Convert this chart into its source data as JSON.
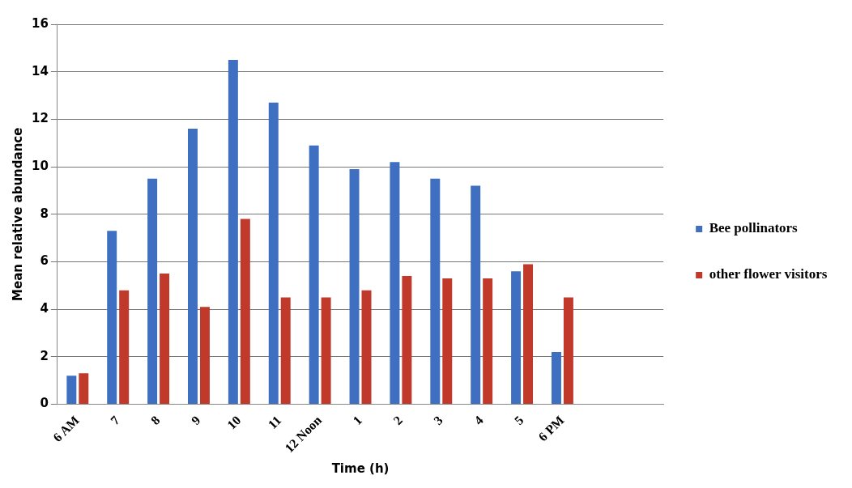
{
  "chart_data": {
    "type": "bar",
    "xlabel": "Time (h)",
    "ylabel": "Mean relative abundance",
    "categories": [
      "6 AM",
      "7",
      "8",
      "9",
      "10",
      "11",
      "12 Noon",
      "1",
      "2",
      "3",
      "4",
      "5",
      "6 PM",
      null,
      null
    ],
    "series": [
      {
        "name": "Bee pollinators",
        "color": "#3f6fc0",
        "values": [
          1.2,
          7.3,
          9.5,
          11.6,
          14.5,
          12.7,
          10.9,
          9.9,
          10.2,
          9.5,
          9.2,
          5.6,
          2.2,
          null,
          null
        ]
      },
      {
        "name": "other flower visitors",
        "color": "#c0392b",
        "values": [
          1.3,
          4.8,
          5.5,
          4.1,
          7.8,
          4.5,
          4.5,
          4.8,
          5.4,
          5.3,
          5.3,
          5.9,
          4.5,
          null,
          null
        ]
      }
    ],
    "ylim": [
      0,
      16
    ],
    "yticks": [
      0,
      2,
      4,
      6,
      8,
      10,
      12,
      14,
      16
    ],
    "grid": "y",
    "legend": "right"
  }
}
